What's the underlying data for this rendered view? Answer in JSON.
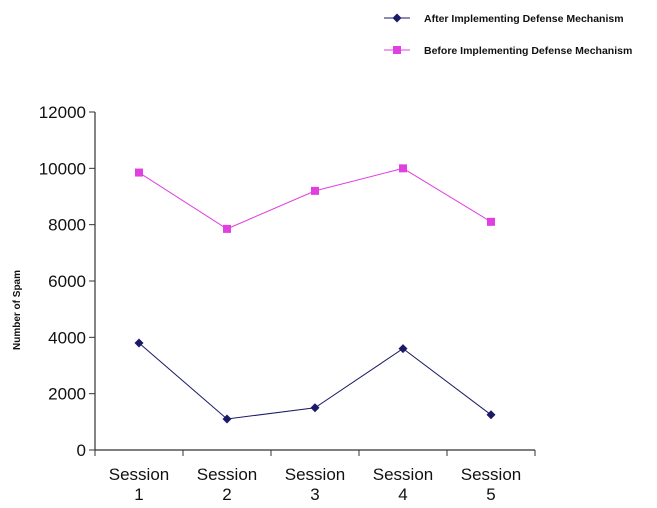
{
  "chart_data": {
    "type": "line",
    "title": "",
    "xlabel": "",
    "ylabel": "Number of Spam",
    "ylim": [
      0,
      12000
    ],
    "yticks": [
      0,
      2000,
      4000,
      6000,
      8000,
      10000,
      12000
    ],
    "categories": [
      [
        "Session",
        "1"
      ],
      [
        "Session",
        "2"
      ],
      [
        "Session",
        "3"
      ],
      [
        "Session",
        "4"
      ],
      [
        "Session",
        "5"
      ]
    ],
    "grid": false,
    "legend_position": "top-right",
    "series": [
      {
        "name": "After Implementing Defense Mechanism",
        "color": "#1a1a66",
        "marker": "diamond",
        "values": [
          3800,
          1100,
          1500,
          3600,
          1250
        ]
      },
      {
        "name": "Before Implementing Defense Mechanism",
        "color": "#e040e0",
        "marker": "square",
        "values": [
          9850,
          7850,
          9200,
          10000,
          8100
        ]
      }
    ]
  }
}
